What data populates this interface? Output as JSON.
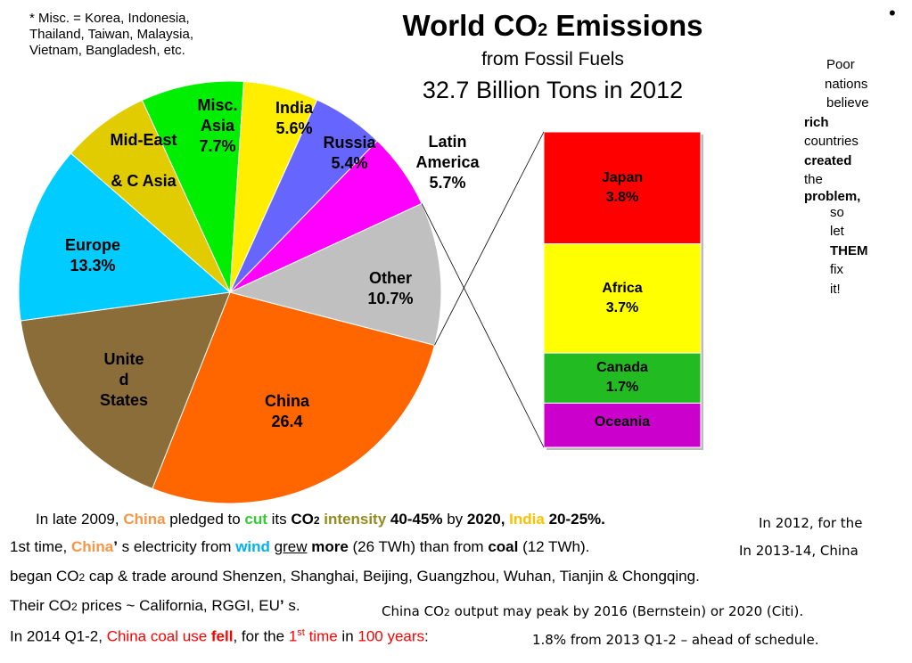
{
  "note": "* Misc. = Korea, Indonesia,\nThailand, Taiwan, Malaysia,\nVietnam, Bangladesh, etc.",
  "title_main": "World CO",
  "title_sub": "2",
  "title_end": " Emissions",
  "subtitle": "from Fossil Fuels",
  "subtitle2": "32.7 Billion Tons in 2012",
  "bullet": "•",
  "side_text": [
    "Poor",
    "nations",
    "believe",
    "rich",
    "countries",
    "created",
    "the",
    "problem,",
    "so",
    "let",
    "THEM",
    "fix",
    "it!"
  ],
  "chart_data": {
    "type": "pie",
    "title": "World CO2 Emissions from Fossil Fuels 32.7 Billion Tons in 2012",
    "unit": "%",
    "slices": [
      {
        "label": "China",
        "value": 26.4,
        "text": "China\n26.4",
        "color": "#ff6600"
      },
      {
        "label": "United States",
        "value": 16.5,
        "text": "Unite\nd\nStates",
        "color": "#8b6d3a"
      },
      {
        "label": "Europe",
        "value": 13.3,
        "text": "Europe\n13.3%",
        "color": "#00ccff"
      },
      {
        "label": "Mid-East & C Asia",
        "value": 6.6,
        "text": "Mid-East\n\n& C Asia",
        "color": "#e0cc00"
      },
      {
        "label": "Misc. Asia",
        "value": 7.7,
        "text": "Misc.\nAsia\n7.7%",
        "color": "#00ee00"
      },
      {
        "label": "India",
        "value": 5.6,
        "text": "India\n5.6%",
        "color": "#ffee00"
      },
      {
        "label": "Russia",
        "value": 5.4,
        "text": "Russia\n5.4%",
        "color": "#6666ff"
      },
      {
        "label": "Latin America",
        "value": 5.7,
        "text": "Latin\nAmerica\n5.7%",
        "color": "#ff00ff"
      },
      {
        "label": "Other",
        "value": 10.7,
        "text": "Other\n10.7%",
        "color": "#c0c0c0"
      }
    ],
    "breakdown": {
      "of": "Other",
      "segments": [
        {
          "label": "Japan",
          "value": 3.8,
          "text": "Japan\n3.8%",
          "color": "#ff0000"
        },
        {
          "label": "Africa",
          "value": 3.7,
          "text": "Africa\n3.7%",
          "color": "#ffff00"
        },
        {
          "label": "Canada",
          "value": 1.7,
          "text": "Canada\n1.7%",
          "color": "#22bb22"
        },
        {
          "label": "Oceania",
          "value": 1.5,
          "text": "Oceania",
          "color": "#cc00cc"
        }
      ]
    }
  },
  "text_lines": {
    "l1": {
      "a": "In late 2009, ",
      "b": "China",
      "c": " pledged to ",
      "d": "cut",
      "e": " its ",
      "f": "CO",
      "g": "2",
      "h": " intensity",
      "i": " 40-45%",
      "j": " by ",
      "k": "2020,",
      "l": " India",
      "m": " 20-25%."
    },
    "l2": {
      "a": "1st time, ",
      "b": "China",
      "c": "’",
      "d": " s electricity from ",
      "e": "wind",
      "f": " ",
      "g": "grew",
      "h": " more",
      "i": " (26 TWh) than from ",
      "j": "coal",
      "k": " (12 TWh)."
    },
    "l3": {
      "a": "began CO",
      "b": "2",
      "c": " cap & trade around Shenzen, Shanghai, Beijing, Guangzhou, Wuhan, Tianjin & Chongqing."
    },
    "l4": {
      "a": "Their CO",
      "b": "2",
      "c": " prices ~ California, RGGI, EU",
      "d": "’",
      "e": " s."
    },
    "l5": {
      "a": "In 2014 Q1-2, ",
      "b": "China coal use ",
      "c": "fell",
      "d": ", for the ",
      "e": "1",
      "f": "st",
      "g": " time",
      "h": " in ",
      "i": "100 years",
      "j": ":"
    },
    "r1": "In 2012, for the",
    "r2": "In 2013-14, China",
    "r4": {
      "a": "China CO",
      "b": "2",
      "c": " output may peak by 2016 (Bernstein) or 2020 (Citi)."
    },
    "r5": "1.8% from 2013 Q1-2 – ahead of schedule."
  }
}
